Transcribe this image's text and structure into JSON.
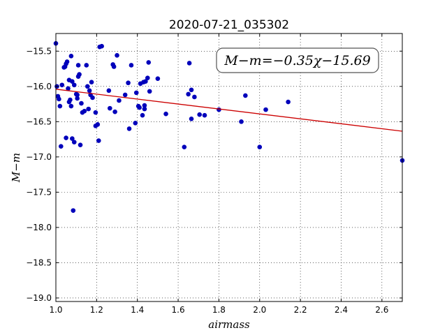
{
  "chart_data": {
    "type": "scatter",
    "title": "2020-07-21_035302",
    "xlabel": "airmass",
    "ylabel": "M−m",
    "xlim": [
      1.0,
      2.7
    ],
    "ylim": [
      -19.05,
      -15.25
    ],
    "x_ticks": [
      1.0,
      1.2,
      1.4,
      1.6,
      1.8,
      2.0,
      2.2,
      2.4,
      2.6
    ],
    "x_tick_labels": [
      "1.0",
      "1.2",
      "1.4",
      "1.6",
      "1.8",
      "2.0",
      "2.2",
      "2.4",
      "2.6"
    ],
    "y_ticks": [
      -15.5,
      -16.0,
      -16.5,
      -17.0,
      -17.5,
      -18.0,
      -18.5,
      -19.0
    ],
    "y_tick_labels": [
      "−15.5",
      "−16.0",
      "−16.5",
      "−17.0",
      "−17.5",
      "−18.0",
      "−18.5",
      "−19.0"
    ],
    "grid": true,
    "annotation": "M−m=−0.35χ−15.69",
    "annotation_position": "top-right",
    "fit": {
      "slope": -0.35,
      "intercept": -15.69,
      "color": "#cc0000"
    },
    "point_color": "#0000bb",
    "points": [
      [
        1.0,
        -15.39
      ],
      [
        1.005,
        -16.0
      ],
      [
        1.01,
        -16.14
      ],
      [
        1.015,
        -16.18
      ],
      [
        1.02,
        -16.28
      ],
      [
        1.025,
        -16.85
      ],
      [
        1.03,
        -15.98
      ],
      [
        1.04,
        -15.73
      ],
      [
        1.045,
        -15.72
      ],
      [
        1.05,
        -15.68
      ],
      [
        1.05,
        -16.73
      ],
      [
        1.055,
        -15.65
      ],
      [
        1.06,
        -16.03
      ],
      [
        1.065,
        -15.91
      ],
      [
        1.065,
        -16.22
      ],
      [
        1.07,
        -16.19
      ],
      [
        1.075,
        -15.57
      ],
      [
        1.075,
        -16.28
      ],
      [
        1.08,
        -15.93
      ],
      [
        1.08,
        -16.74
      ],
      [
        1.085,
        -17.76
      ],
      [
        1.09,
        -15.98
      ],
      [
        1.09,
        -16.79
      ],
      [
        1.1,
        -16.11
      ],
      [
        1.105,
        -16.12
      ],
      [
        1.105,
        -16.17
      ],
      [
        1.11,
        -15.86
      ],
      [
        1.11,
        -15.7
      ],
      [
        1.115,
        -15.83
      ],
      [
        1.12,
        -16.83
      ],
      [
        1.125,
        -16.24
      ],
      [
        1.13,
        -16.37
      ],
      [
        1.14,
        -16.35
      ],
      [
        1.15,
        -15.7
      ],
      [
        1.155,
        -16.0
      ],
      [
        1.16,
        -16.32
      ],
      [
        1.165,
        -16.06
      ],
      [
        1.17,
        -16.12
      ],
      [
        1.175,
        -15.94
      ],
      [
        1.18,
        -16.16
      ],
      [
        1.195,
        -16.37
      ],
      [
        1.195,
        -16.56
      ],
      [
        1.205,
        -16.54
      ],
      [
        1.21,
        -16.77
      ],
      [
        1.215,
        -15.44
      ],
      [
        1.225,
        -15.43
      ],
      [
        1.26,
        -16.06
      ],
      [
        1.265,
        -16.31
      ],
      [
        1.28,
        -15.69
      ],
      [
        1.285,
        -15.72
      ],
      [
        1.29,
        -16.36
      ],
      [
        1.3,
        -15.56
      ],
      [
        1.31,
        -16.2
      ],
      [
        1.34,
        -16.12
      ],
      [
        1.355,
        -15.95
      ],
      [
        1.36,
        -16.6
      ],
      [
        1.37,
        -15.7
      ],
      [
        1.39,
        -16.52
      ],
      [
        1.395,
        -16.09
      ],
      [
        1.405,
        -16.28
      ],
      [
        1.41,
        -16.3
      ],
      [
        1.415,
        -15.96
      ],
      [
        1.425,
        -16.41
      ],
      [
        1.43,
        -15.94
      ],
      [
        1.435,
        -16.32
      ],
      [
        1.435,
        -16.27
      ],
      [
        1.44,
        -15.93
      ],
      [
        1.45,
        -15.88
      ],
      [
        1.455,
        -15.66
      ],
      [
        1.46,
        -16.07
      ],
      [
        1.5,
        -15.89
      ],
      [
        1.54,
        -16.39
      ],
      [
        1.63,
        -16.86
      ],
      [
        1.65,
        -16.11
      ],
      [
        1.655,
        -15.67
      ],
      [
        1.665,
        -16.05
      ],
      [
        1.665,
        -16.46
      ],
      [
        1.68,
        -16.15
      ],
      [
        1.705,
        -16.4
      ],
      [
        1.73,
        -16.41
      ],
      [
        1.8,
        -16.33
      ],
      [
        1.91,
        -16.5
      ],
      [
        1.93,
        -16.13
      ],
      [
        2.0,
        -16.86
      ],
      [
        2.03,
        -16.33
      ],
      [
        2.14,
        -16.22
      ],
      [
        2.7,
        -17.05
      ]
    ]
  }
}
